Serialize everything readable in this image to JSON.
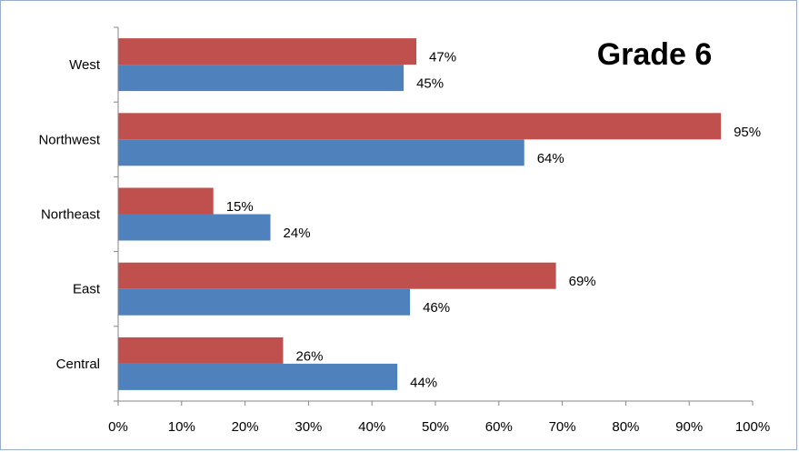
{
  "chart_data": {
    "type": "bar",
    "orientation": "horizontal",
    "title": "Grade 6",
    "categories": [
      "Central",
      "East",
      "Northeast",
      "Northwest",
      "West"
    ],
    "series": [
      {
        "color": "#4f81bd",
        "values": [
          44,
          46,
          24,
          64,
          45
        ]
      },
      {
        "color": "#c0504d",
        "values": [
          26,
          69,
          15,
          95,
          47
        ]
      }
    ],
    "xlim": [
      0,
      100
    ],
    "x_ticks": [
      "0%",
      "10%",
      "20%",
      "30%",
      "40%",
      "50%",
      "60%",
      "70%",
      "80%",
      "90%",
      "100%"
    ],
    "value_suffix": "%",
    "grid": false,
    "legend": "none"
  }
}
